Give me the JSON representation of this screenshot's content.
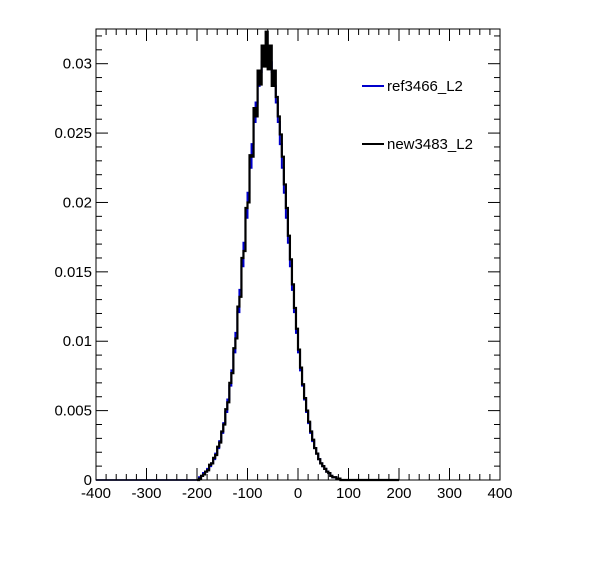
{
  "chart_data": {
    "type": "histogram-step",
    "title": "",
    "xlabel": "",
    "ylabel": "",
    "xlim": [
      -400,
      400
    ],
    "ylim": [
      0,
      0.0325
    ],
    "x_tick_labels": [
      "-400",
      "-300",
      "-200",
      "-100",
      "0",
      "100",
      "200",
      "300",
      "400"
    ],
    "y_tick_labels": [
      "0",
      "0.005",
      "0.01",
      "0.015",
      "0.02",
      "0.025",
      "0.03"
    ],
    "legend": "right",
    "bin_width": 4,
    "bin_range": [
      -200,
      200
    ],
    "series": [
      {
        "name": "ref3466_L2",
        "color": "#0000cc",
        "values": [
          0.0,
          0.0002,
          0.0003,
          0.0005,
          0.0006,
          0.0008,
          0.001,
          0.0012,
          0.0015,
          0.0019,
          0.0023,
          0.0028,
          0.0034,
          0.0041,
          0.0049,
          0.0058,
          0.0068,
          0.0079,
          0.0092,
          0.0106,
          0.0121,
          0.0137,
          0.0154,
          0.0171,
          0.0189,
          0.0207,
          0.0225,
          0.0242,
          0.0258,
          0.0272,
          0.0284,
          0.0294,
          0.0301,
          0.0306,
          0.0308,
          0.0306,
          0.0301,
          0.0294,
          0.0284,
          0.0272,
          0.0258,
          0.0242,
          0.0225,
          0.0207,
          0.0189,
          0.0171,
          0.0154,
          0.0137,
          0.0121,
          0.0106,
          0.0092,
          0.0079,
          0.0068,
          0.0058,
          0.0049,
          0.0041,
          0.0034,
          0.0028,
          0.0023,
          0.0019,
          0.0015,
          0.0012,
          0.001,
          0.0008,
          0.0006,
          0.0005,
          0.0003,
          0.0002,
          0.0002,
          0.0001,
          0.0001,
          0.0,
          0.0,
          0.0,
          0.0,
          0.0,
          0.0,
          0.0,
          0.0,
          0.0,
          0.0,
          0.0,
          0.0,
          0.0,
          0.0,
          0.0,
          0.0,
          0.0,
          0.0,
          0.0,
          0.0,
          0.0,
          0.0,
          0.0,
          0.0,
          0.0,
          0.0,
          0.0,
          0.0,
          0.0
        ]
      },
      {
        "name": "new3483_L2",
        "color": "#000000",
        "values": [
          0.0,
          0.0001,
          0.0003,
          0.0004,
          0.0006,
          0.0007,
          0.0011,
          0.0012,
          0.0016,
          0.0018,
          0.0024,
          0.0027,
          0.0035,
          0.004,
          0.0051,
          0.0056,
          0.007,
          0.0077,
          0.0095,
          0.0102,
          0.0125,
          0.0132,
          0.016,
          0.0165,
          0.0196,
          0.02,
          0.0234,
          0.0233,
          0.0268,
          0.0262,
          0.0295,
          0.0285,
          0.0313,
          0.0298,
          0.0323,
          0.0296,
          0.0313,
          0.0284,
          0.0295,
          0.0276,
          0.0262,
          0.0249,
          0.0233,
          0.0213,
          0.0196,
          0.0176,
          0.0159,
          0.0141,
          0.0124,
          0.0109,
          0.0094,
          0.0081,
          0.0069,
          0.0059,
          0.005,
          0.0042,
          0.0035,
          0.0029,
          0.0023,
          0.0019,
          0.0015,
          0.0012,
          0.001,
          0.0008,
          0.0006,
          0.0005,
          0.0003,
          0.0002,
          0.0002,
          0.0001,
          0.0001,
          0.0,
          0.0,
          0.0,
          0.0,
          0.0,
          0.0,
          0.0,
          0.0,
          0.0,
          0.0,
          0.0,
          0.0,
          0.0,
          0.0,
          0.0,
          0.0,
          0.0,
          0.0,
          0.0,
          0.0,
          0.0,
          0.0,
          0.0,
          0.0,
          0.0,
          0.0,
          0.0,
          0.0,
          0.0
        ]
      }
    ]
  }
}
